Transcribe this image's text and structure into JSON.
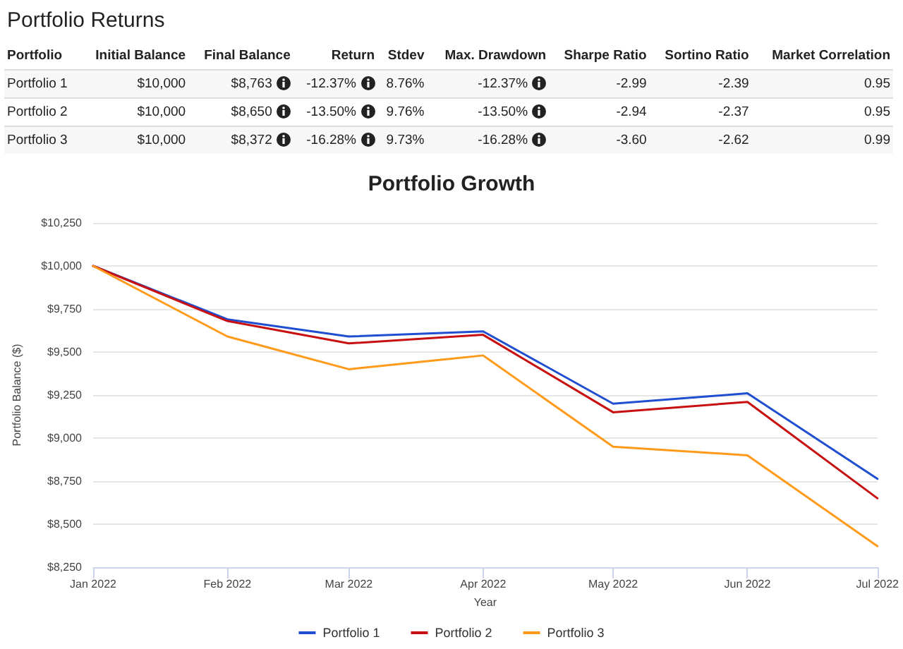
{
  "chart_data": [
    {
      "type": "other",
      "title": "Portfolio Returns",
      "categories": [
        "Portfolio",
        "Initial Balance",
        "Final Balance",
        "Return",
        "Stdev",
        "Max. Drawdown",
        "Sharpe Ratio",
        "Sortino Ratio",
        "Market Correlation"
      ],
      "y_categories": [
        "Portfolio 1",
        "Portfolio 2",
        "Portfolio 3"
      ],
      "cell_labels": [
        [
          "$10,000",
          "$8,763",
          "-12.37%",
          "8.76%",
          "-12.37%",
          "-2.99",
          "-2.39",
          "0.95"
        ],
        [
          "$10,000",
          "$8,650",
          "-13.50%",
          "9.76%",
          "-13.50%",
          "-2.94",
          "-2.37",
          "0.95"
        ],
        [
          "$10,000",
          "$8,372",
          "-16.28%",
          "9.73%",
          "-16.28%",
          "-3.60",
          "-2.62",
          "0.99"
        ]
      ]
    },
    {
      "type": "line",
      "title": "Portfolio Growth",
      "xlabel": "Year",
      "ylabel": "Portfolio Balance ($)",
      "x": [
        "2022-01",
        "2022-02",
        "2022-03",
        "2022-04",
        "2022-05",
        "2022-06",
        "2022-07"
      ],
      "series": [
        {
          "name": "Portfolio 1",
          "color": "#1f4fd0",
          "values": [
            10000,
            9690,
            9590,
            9620,
            9200,
            9260,
            8763
          ]
        },
        {
          "name": "Portfolio 2",
          "color": "#c81010",
          "values": [
            10000,
            9680,
            9550,
            9600,
            9150,
            9210,
            8650
          ]
        },
        {
          "name": "Portfolio 3",
          "color": "#ff9a1a",
          "values": [
            10000,
            9590,
            9400,
            9480,
            8950,
            8900,
            8372
          ]
        }
      ],
      "xlim": [
        "2022-01",
        "2022-07"
      ],
      "xticks": [
        {
          "value": "2022-01",
          "label": "Jan 2022"
        },
        {
          "value": "2022-02",
          "label": "Feb 2022"
        },
        {
          "value": "2022-03",
          "label": "Mar 2022"
        },
        {
          "value": "2022-04",
          "label": "Apr 2022"
        },
        {
          "value": "2022-05",
          "label": "May 2022"
        },
        {
          "value": "2022-06",
          "label": "Jun 2022"
        },
        {
          "value": "2022-07",
          "label": "Jul 2022"
        }
      ],
      "ylim": [
        8250,
        10250
      ],
      "yticks": [
        {
          "value": 8250,
          "label": "$8,250"
        },
        {
          "value": 8500,
          "label": "$8,500"
        },
        {
          "value": 8750,
          "label": "$8,750"
        },
        {
          "value": 9000,
          "label": "$9,000"
        },
        {
          "value": 9250,
          "label": "$9,250"
        },
        {
          "value": 9500,
          "label": "$9,500"
        },
        {
          "value": 9750,
          "label": "$9,750"
        },
        {
          "value": 10000,
          "label": "$10,000"
        },
        {
          "value": 10250,
          "label": "$10,250"
        }
      ],
      "grid": "y",
      "legend": "bottom",
      "marker": "none",
      "line_style": "solid"
    }
  ]
}
